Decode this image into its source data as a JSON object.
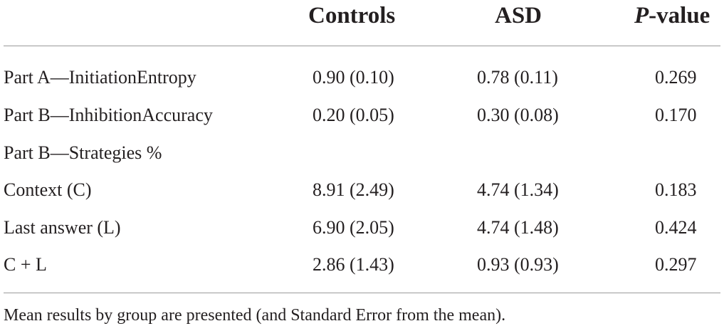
{
  "table": {
    "headers": {
      "controls": "Controls",
      "asd": "ASD",
      "p_letter": "P",
      "p_rest": "-value"
    },
    "rows": [
      {
        "label": "Part A—InitiationEntropy",
        "controls": "0.90 (0.10)",
        "asd": "0.78 (0.11)",
        "p": "0.269"
      },
      {
        "label": "Part B—InhibitionAccuracy",
        "controls": "0.20 (0.05)",
        "asd": "0.30 (0.08)",
        "p": "0.170"
      },
      {
        "label": "Part B—Strategies %",
        "controls": "",
        "asd": "",
        "p": ""
      },
      {
        "label": "Context (C)",
        "controls": "8.91 (2.49)",
        "asd": "4.74 (1.34)",
        "p": "0.183"
      },
      {
        "label": "Last answer (L)",
        "controls": "6.90 (2.05)",
        "asd": "4.74 (1.48)",
        "p": "0.424"
      },
      {
        "label": "C + L",
        "controls": "2.86 (1.43)",
        "asd": "0.93 (0.93)",
        "p": "0.297"
      }
    ],
    "footnote": "Mean results by group are presented (and Standard Error from the mean)."
  }
}
